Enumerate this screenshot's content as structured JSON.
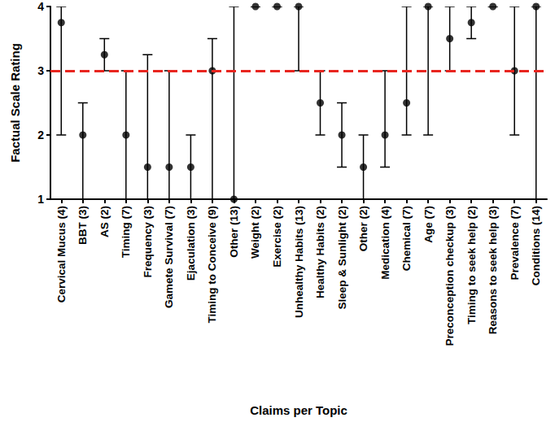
{
  "chart_data": {
    "type": "scatter",
    "x_label": "Claims per Topic",
    "y_label": "Factual Scale Rating",
    "categories": [
      "Cervical Mucus (4)",
      "BBT (3)",
      "AS (2)",
      "Timing (7)",
      "Frequency (3)",
      "Gamete Survival (7)",
      "Ejaculation (3)",
      "Timing to Conceive (9)",
      "Other (13)",
      "Weight (2)",
      "Exercise (2)",
      "Unhealthy Habits (13)",
      "Healthy Habits (2)",
      "Sleep & Sunlight (2)",
      "Other (2)",
      "Medication (4)",
      "Chemical (7)",
      "Age (7)",
      "Preconception checkup (3)",
      "Timing to seek help (2)",
      "Reasons to seek help (3)",
      "Prevalence (7)",
      "Conditions (14)"
    ],
    "values": [
      3.75,
      2,
      3.25,
      2,
      1.5,
      1.5,
      1.5,
      3,
      1,
      4,
      4,
      4,
      2.5,
      2,
      1.5,
      2,
      2.5,
      4,
      3.5,
      3.75,
      4,
      3,
      4
    ],
    "lower": [
      2,
      1,
      3,
      1,
      1,
      1,
      1,
      1,
      1,
      4,
      4,
      3,
      2,
      1.5,
      1,
      1.5,
      2,
      2,
      3,
      3.5,
      4,
      2,
      1
    ],
    "upper": [
      4,
      2.5,
      3.5,
      3,
      3.25,
      3,
      2,
      3.5,
      4,
      4,
      4,
      4,
      3,
      2.5,
      2,
      3,
      4,
      4,
      4,
      4,
      4,
      4,
      4
    ],
    "color": "#000000",
    "marker": "circle",
    "reference_line": {
      "value": 3,
      "color": "#e8251f",
      "line_style": "dashed"
    },
    "ylim": [
      1,
      4
    ],
    "yticks": [
      1,
      2,
      3,
      4
    ],
    "grid": false
  }
}
